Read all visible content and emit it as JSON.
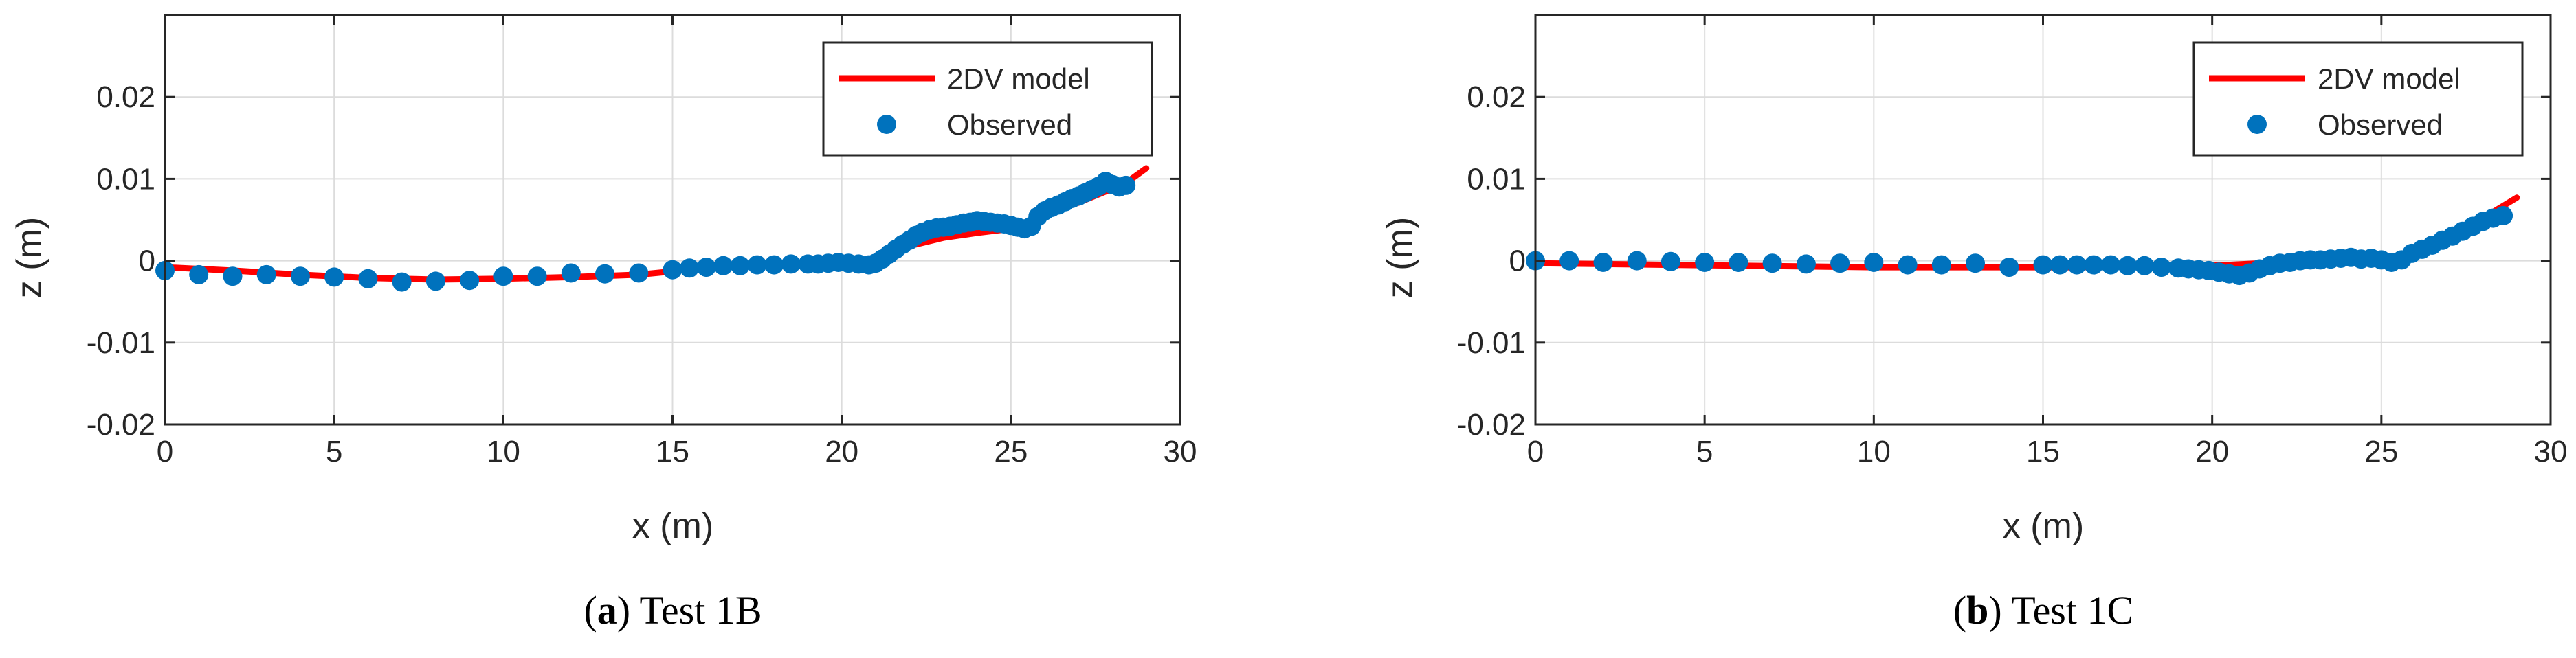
{
  "colors": {
    "model": "#ff0000",
    "observed": "#0072bd",
    "grid": "#dcdcdc",
    "axis": "#262626"
  },
  "chart_data": [
    {
      "type": "line+scatter",
      "caption_letter": "a",
      "caption_text": "Test 1B",
      "xlabel": "x (m)",
      "ylabel": "z (m)",
      "xlim": [
        0,
        30
      ],
      "ylim": [
        -0.02,
        0.03
      ],
      "xticks": [
        0,
        5,
        10,
        15,
        20,
        25,
        30
      ],
      "yticks": [
        -0.02,
        -0.01,
        0,
        0.01,
        0.02
      ],
      "xtick_labels": [
        "0",
        "5",
        "10",
        "15",
        "20",
        "25",
        "30"
      ],
      "ytick_labels": [
        "-0.02",
        "-0.01",
        "0",
        "0.01",
        "0.02"
      ],
      "grid": true,
      "legend": {
        "position": "top-right",
        "entries": [
          "2DV model",
          "Observed"
        ]
      },
      "series": [
        {
          "name": "2DV model",
          "kind": "line",
          "x": [
            0,
            2,
            4,
            6,
            8,
            10,
            12,
            14,
            15,
            16,
            18,
            20,
            20.8,
            21.5,
            22,
            23,
            24,
            25,
            25.5,
            26,
            27,
            28,
            28.5,
            29
          ],
          "y": [
            -0.0008,
            -0.0012,
            -0.0017,
            -0.0021,
            -0.0023,
            -0.0022,
            -0.002,
            -0.0017,
            -0.0013,
            -0.0008,
            -0.0004,
            -0.0002,
            -0.0002,
            0.0009,
            0.0018,
            0.0028,
            0.0034,
            0.0039,
            0.0046,
            0.0057,
            0.0071,
            0.0088,
            0.0098,
            0.0113
          ]
        },
        {
          "name": "Observed",
          "kind": "scatter",
          "x": [
            0,
            1,
            2,
            3,
            4,
            5,
            6,
            7,
            8,
            9,
            10,
            11,
            12,
            13,
            14,
            15,
            15.5,
            16,
            16.5,
            17,
            17.5,
            18,
            18.5,
            19,
            19.3,
            19.6,
            19.9,
            20.2,
            20.5,
            20.8,
            21,
            21.2,
            21.4,
            21.6,
            21.8,
            22,
            22.2,
            22.4,
            22.6,
            22.8,
            23,
            23.2,
            23.4,
            23.6,
            23.8,
            24,
            24.2,
            24.4,
            24.6,
            24.8,
            25,
            25.2,
            25.4,
            25.6,
            25.8,
            26,
            26.2,
            26.4,
            26.6,
            26.8,
            27,
            27.2,
            27.4,
            27.6,
            27.8,
            28,
            28.2,
            28.4
          ],
          "y": [
            -0.0012,
            -0.0017,
            -0.0019,
            -0.0017,
            -0.0019,
            -0.002,
            -0.0022,
            -0.0026,
            -0.0025,
            -0.0024,
            -0.0019,
            -0.0019,
            -0.0015,
            -0.0016,
            -0.0015,
            -0.0011,
            -0.0009,
            -0.0008,
            -0.0006,
            -0.0006,
            -0.0005,
            -0.0005,
            -0.0004,
            -0.0004,
            -0.0004,
            -0.0003,
            -0.0002,
            -0.0003,
            -0.0004,
            -0.0005,
            -0.0003,
            0.0002,
            0.0008,
            0.0014,
            0.002,
            0.0025,
            0.0031,
            0.0035,
            0.0038,
            0.004,
            0.0041,
            0.0042,
            0.0044,
            0.0046,
            0.0047,
            0.0049,
            0.0048,
            0.0047,
            0.0046,
            0.0045,
            0.0043,
            0.0041,
            0.0039,
            0.0042,
            0.0054,
            0.0061,
            0.0065,
            0.0068,
            0.0072,
            0.0076,
            0.0079,
            0.0083,
            0.0087,
            0.0091,
            0.0097,
            0.0093,
            0.009,
            0.0092
          ]
        }
      ]
    },
    {
      "type": "line+scatter",
      "caption_letter": "b",
      "caption_text": "Test 1C",
      "xlabel": "x (m)",
      "ylabel": "z (m)",
      "xlim": [
        0,
        30
      ],
      "ylim": [
        -0.02,
        0.03
      ],
      "xticks": [
        0,
        5,
        10,
        15,
        20,
        25,
        30
      ],
      "yticks": [
        -0.02,
        -0.01,
        0,
        0.01,
        0.02
      ],
      "xtick_labels": [
        "0",
        "5",
        "10",
        "15",
        "20",
        "25",
        "30"
      ],
      "ytick_labels": [
        "-0.02",
        "-0.01",
        "0",
        "0.01",
        "0.02"
      ],
      "grid": true,
      "legend": {
        "position": "top-right",
        "entries": [
          "2DV model",
          "Observed"
        ]
      },
      "series": [
        {
          "name": "2DV model",
          "kind": "line",
          "x": [
            0,
            2,
            4,
            6,
            8,
            10,
            12,
            14,
            16,
            18,
            20,
            21,
            22,
            23,
            24,
            24.5,
            25,
            25.5,
            26,
            27,
            28,
            29
          ],
          "y": [
            -0.0003,
            -0.0004,
            -0.0005,
            -0.0006,
            -0.0007,
            -0.0008,
            -0.0008,
            -0.0008,
            -0.0008,
            -0.0007,
            -0.0006,
            -0.0004,
            -0.0002,
            0,
            0.0001,
            0.0001,
            0.0001,
            0.0006,
            0.0014,
            0.003,
            0.0052,
            0.0077
          ]
        },
        {
          "name": "Observed",
          "kind": "scatter",
          "x": [
            0,
            1,
            2,
            3,
            4,
            5,
            6,
            7,
            8,
            9,
            10,
            11,
            12,
            13,
            14,
            15,
            15.5,
            16,
            16.5,
            17,
            17.5,
            18,
            18.5,
            19,
            19.3,
            19.6,
            19.9,
            20.2,
            20.5,
            20.8,
            21.1,
            21.4,
            21.7,
            22,
            22.3,
            22.6,
            22.9,
            23.2,
            23.5,
            23.8,
            24.1,
            24.4,
            24.7,
            25,
            25.3,
            25.6,
            25.9,
            26.2,
            26.5,
            26.8,
            27.1,
            27.4,
            27.7,
            28,
            28.3,
            28.6
          ],
          "y": [
            0,
            0,
            -0.0002,
            0,
            -0.0001,
            -0.0002,
            -0.0002,
            -0.0003,
            -0.0004,
            -0.0003,
            -0.0002,
            -0.0005,
            -0.0005,
            -0.0003,
            -0.0008,
            -0.0005,
            -0.0005,
            -0.0005,
            -0.0005,
            -0.0005,
            -0.0006,
            -0.0006,
            -0.0008,
            -0.0009,
            -0.001,
            -0.0011,
            -0.0012,
            -0.0014,
            -0.0016,
            -0.0018,
            -0.0015,
            -0.001,
            -0.0006,
            -0.0003,
            -0.0002,
            0,
            0.0001,
            0.0001,
            0.0002,
            0.0003,
            0.0004,
            0.0002,
            0.0003,
            0.0001,
            -0.0002,
            0.0001,
            0.0009,
            0.0014,
            0.0019,
            0.0025,
            0.003,
            0.0036,
            0.0042,
            0.0048,
            0.0052,
            0.0055
          ]
        }
      ]
    }
  ]
}
